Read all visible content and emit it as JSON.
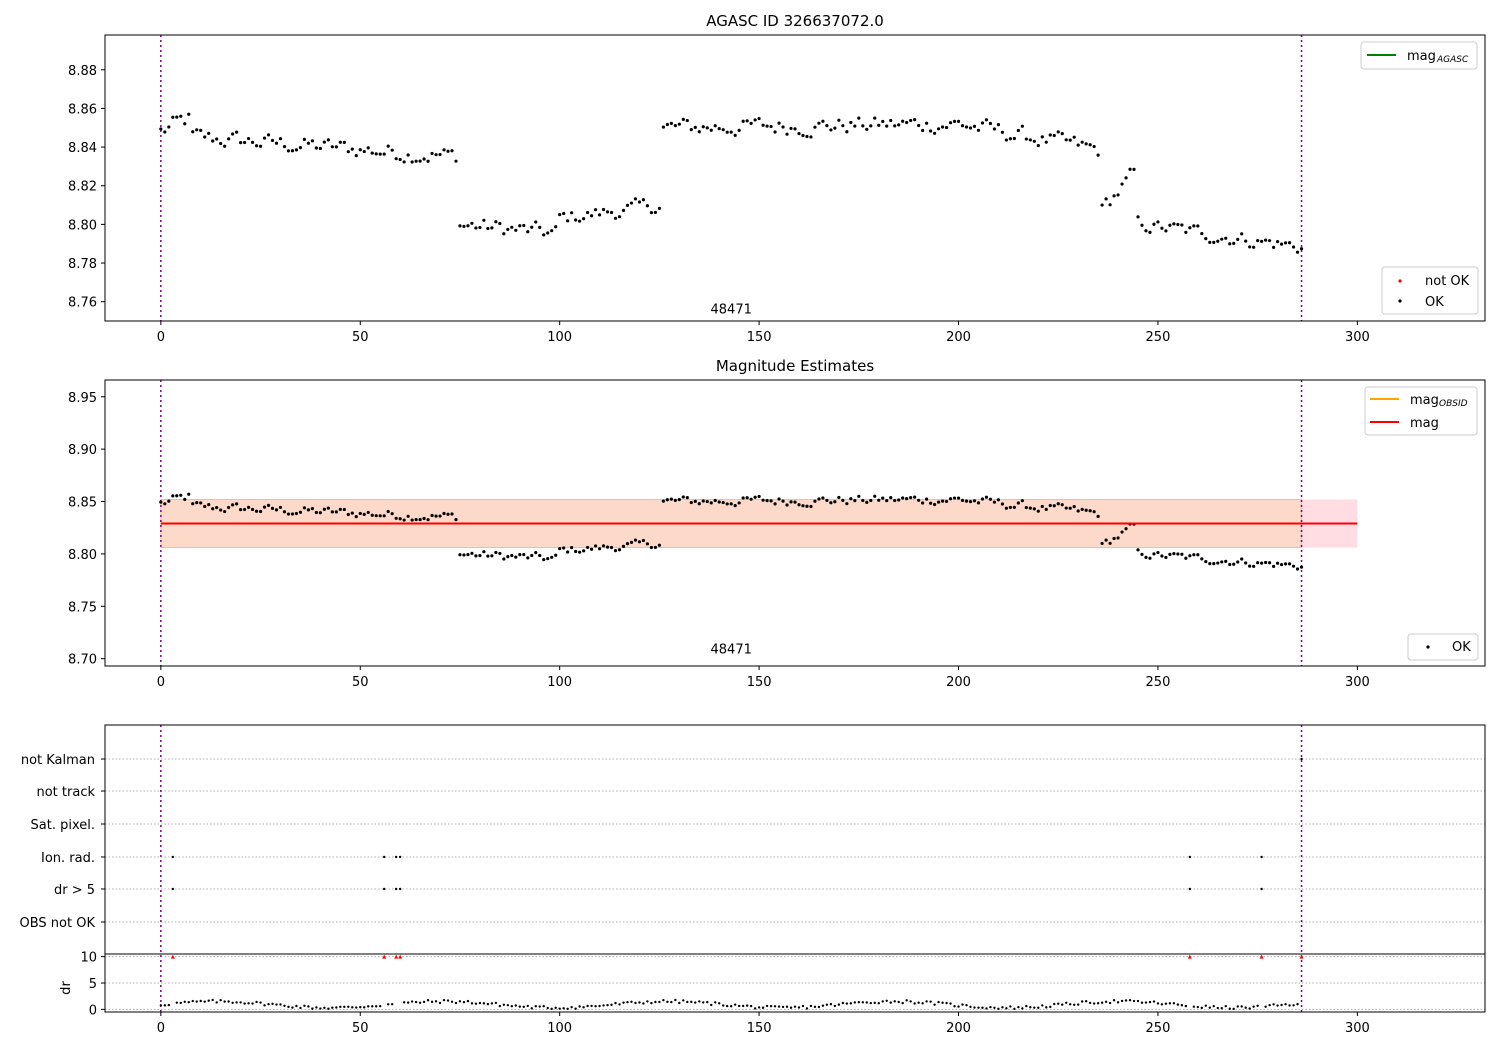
{
  "chart_data": [
    {
      "type": "scatter",
      "title": "AGASC ID 326637072.0",
      "xlim": [
        -14,
        332
      ],
      "ylim": [
        8.75,
        8.898
      ],
      "yticks": [
        "8.76",
        "8.78",
        "8.80",
        "8.82",
        "8.84",
        "8.86",
        "8.88"
      ],
      "xticks": [
        "0",
        "50",
        "100",
        "150",
        "200",
        "250",
        "300"
      ],
      "vlines": [
        0,
        286
      ],
      "obsid_label": "48471",
      "obsid_label_x": 143,
      "legend_top": [
        {
          "label": "mag",
          "subscript": "AGASC",
          "color": "#008000"
        }
      ],
      "legend_bottom": [
        {
          "label": "not OK",
          "color": "#ff0000"
        },
        {
          "label": "OK",
          "color": "#000000"
        }
      ],
      "mag_segments": [
        {
          "x0": 0,
          "x1": 8,
          "start": 8.848,
          "end": 8.855,
          "noise": 0.009
        },
        {
          "x0": 8,
          "x1": 75,
          "start": 8.845,
          "end": 8.835,
          "noise": 0.008
        },
        {
          "x0": 75,
          "x1": 100,
          "start": 8.8,
          "end": 8.795,
          "noise": 0.008
        },
        {
          "x0": 100,
          "x1": 126,
          "start": 8.803,
          "end": 8.81,
          "noise": 0.007
        },
        {
          "x0": 126,
          "x1": 200,
          "start": 8.85,
          "end": 8.852,
          "noise": 0.008
        },
        {
          "x0": 200,
          "x1": 236,
          "start": 8.852,
          "end": 8.838,
          "noise": 0.008
        },
        {
          "x0": 236,
          "x1": 245,
          "start": 8.808,
          "end": 8.828,
          "noise": 0.008
        },
        {
          "x0": 245,
          "x1": 287,
          "start": 8.8,
          "end": 8.788,
          "noise": 0.007
        }
      ]
    },
    {
      "type": "scatter",
      "title": "Magnitude Estimates",
      "xlim": [
        -14,
        332
      ],
      "ylim": [
        8.693,
        8.966
      ],
      "yticks": [
        "8.70",
        "8.75",
        "8.80",
        "8.85",
        "8.90",
        "8.95"
      ],
      "xticks": [
        "0",
        "50",
        "100",
        "150",
        "200",
        "250",
        "300"
      ],
      "vlines": [
        0,
        286
      ],
      "obsid_label": "48471",
      "obsid_label_x": 143,
      "mag_line": {
        "value": 8.829,
        "x0": 0,
        "x1": 300,
        "color": "#ff0000"
      },
      "mag_obsid_line": {
        "value": 8.829,
        "x0": 0,
        "x1": 286,
        "color": "#ffa500"
      },
      "band_total": {
        "low": 8.806,
        "high": 8.852,
        "x0": 0,
        "x1": 300,
        "color": "#ffdde3"
      },
      "band_obsid": {
        "low": 8.806,
        "high": 8.852,
        "x0": 0,
        "x1": 286,
        "color": "#fcd9c8"
      },
      "legend_top": [
        {
          "label": "mag",
          "subscript": "OBSID",
          "color": "#ffa500"
        },
        {
          "label": "mag",
          "subscript": "",
          "color": "#ff0000"
        }
      ],
      "legend_bottom": [
        {
          "label": "OK",
          "color": "#000000"
        }
      ]
    },
    {
      "type": "scatter",
      "title": "",
      "xlim": [
        -14,
        332
      ],
      "xticks": [
        "0",
        "50",
        "100",
        "150",
        "200",
        "250",
        "300"
      ],
      "vlines": [
        0,
        286
      ],
      "flag_labels": [
        "not Kalman",
        "not track",
        "Sat. pixel.",
        "Ion. rad.",
        "dr > 5",
        "OBS not OK"
      ],
      "flag_points": {
        "Ion. rad.": [
          3,
          56,
          59,
          60,
          258,
          276
        ],
        "dr > 5": [
          3,
          56,
          59,
          60,
          258,
          276
        ],
        "not Kalman": [
          286
        ]
      },
      "dr_ylabel": "dr",
      "dr_ylim": [
        -0.5,
        10.5
      ],
      "dr_yticks": [
        "0",
        "5",
        "10"
      ],
      "dr_clipped_x": [
        3,
        56,
        59,
        60,
        258,
        276,
        286
      ],
      "dr_clip_value": 10
    }
  ]
}
